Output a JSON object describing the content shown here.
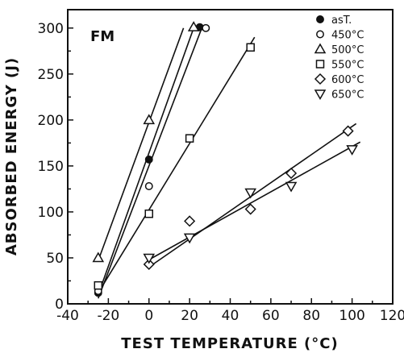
{
  "chart_data": {
    "type": "scatter",
    "panel_label": "FM",
    "xlabel": "TEST TEMPERATURE (°C)",
    "ylabel": "ABSORBED ENERGY (J)",
    "xlim": [
      -40,
      120
    ],
    "ylim": [
      0,
      320
    ],
    "xticks": [
      "-40",
      "-20",
      "0",
      "20",
      "40",
      "60",
      "80",
      "100",
      "120"
    ],
    "yticks": [
      "0",
      "50",
      "100",
      "150",
      "200",
      "250",
      "300"
    ],
    "grid": false,
    "legend_position": "top-right",
    "series": [
      {
        "name": "asT.",
        "marker": "filled-circle",
        "points": [
          [
            -25,
            12
          ],
          [
            0,
            157
          ],
          [
            25,
            301
          ]
        ],
        "fit": [
          [
            -25,
            10
          ],
          [
            22,
            300
          ]
        ]
      },
      {
        "name": "450°C",
        "marker": "open-circle",
        "points": [
          [
            -25,
            14
          ],
          [
            0,
            128
          ],
          [
            28,
            300
          ]
        ],
        "fit": [
          [
            -25,
            6
          ],
          [
            26,
            300
          ]
        ]
      },
      {
        "name": "500°C",
        "marker": "triangle-up",
        "points": [
          [
            -25,
            50
          ],
          [
            0,
            200
          ],
          [
            22,
            301
          ]
        ],
        "fit": [
          [
            -25,
            47
          ],
          [
            17,
            300
          ]
        ]
      },
      {
        "name": "550°C",
        "marker": "square",
        "points": [
          [
            -25,
            20
          ],
          [
            0,
            98
          ],
          [
            20,
            180
          ],
          [
            50,
            279
          ]
        ],
        "fit": [
          [
            -25,
            12
          ],
          [
            52,
            290
          ]
        ]
      },
      {
        "name": "600°C",
        "marker": "diamond",
        "points": [
          [
            0,
            43
          ],
          [
            20,
            90
          ],
          [
            50,
            103
          ],
          [
            70,
            142
          ],
          [
            98,
            188
          ]
        ],
        "fit": [
          [
            0,
            40
          ],
          [
            102,
            196
          ]
        ]
      },
      {
        "name": "650°C",
        "marker": "triangle-down",
        "points": [
          [
            0,
            50
          ],
          [
            20,
            72
          ],
          [
            50,
            121
          ],
          [
            70,
            128
          ],
          [
            100,
            168
          ]
        ],
        "fit": [
          [
            0,
            48
          ],
          [
            104,
            176
          ]
        ]
      }
    ]
  }
}
